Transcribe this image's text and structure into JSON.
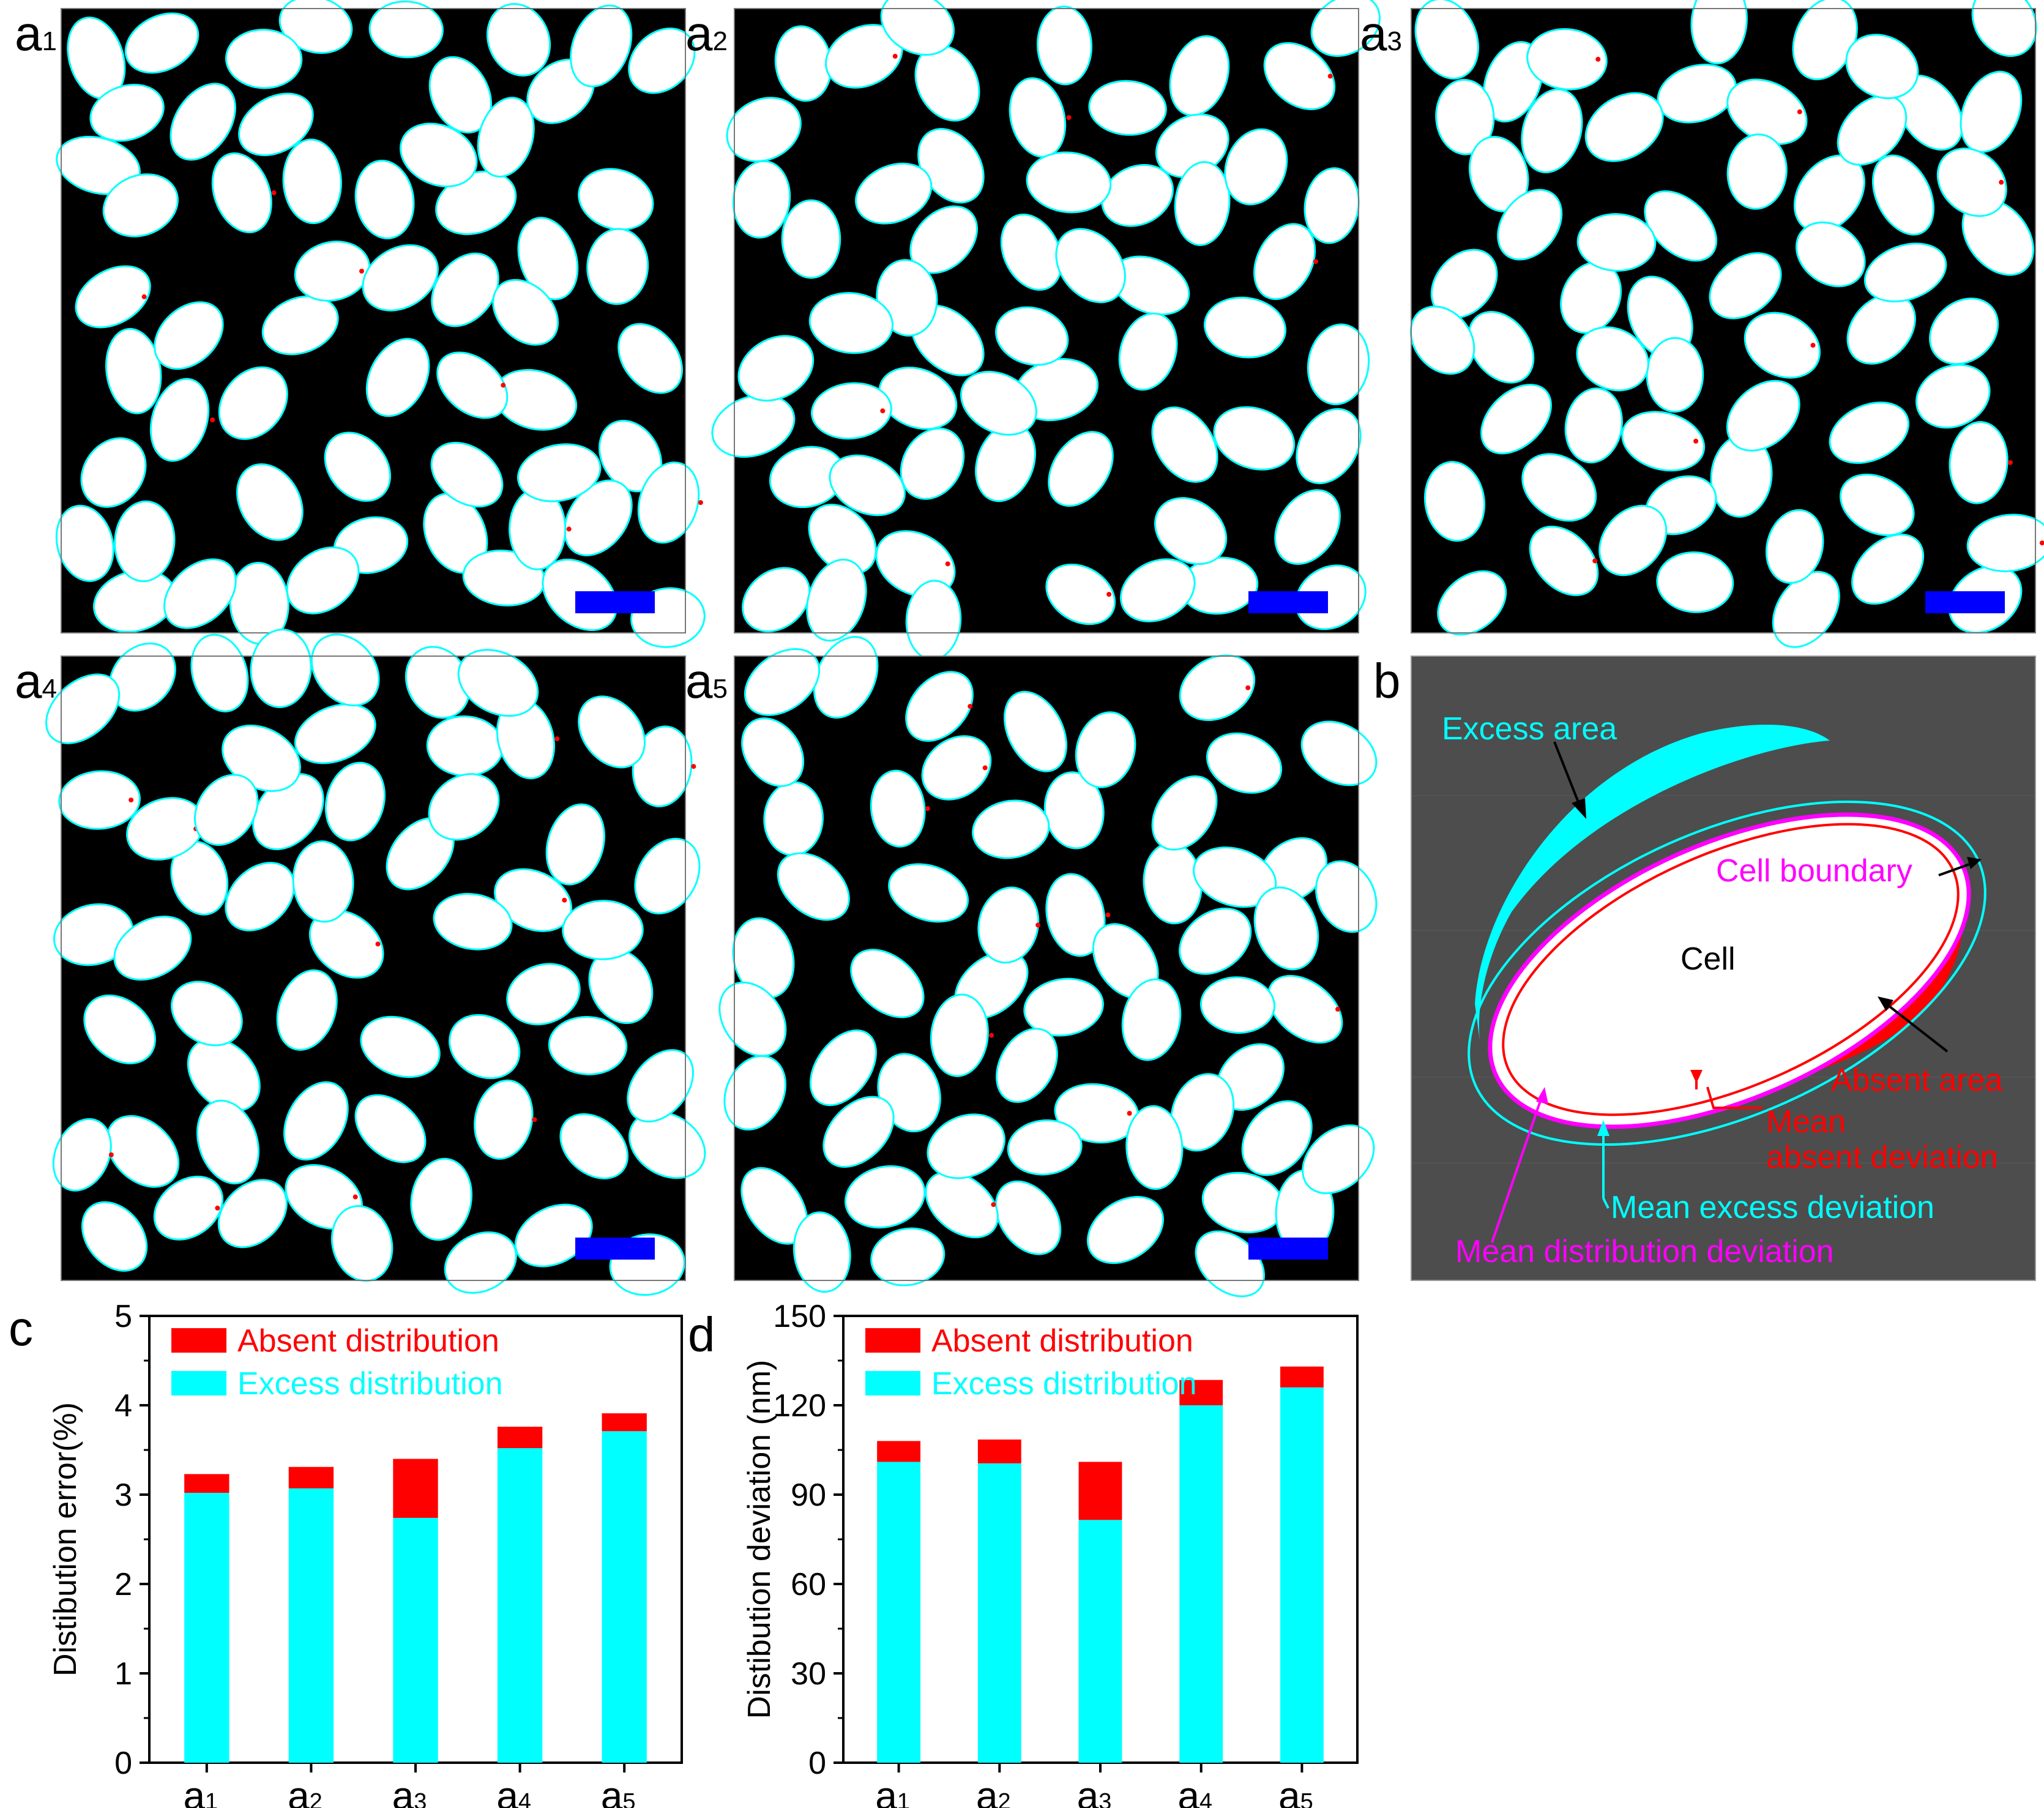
{
  "colors": {
    "excess": "#00ffff",
    "absent": "#ff0000",
    "boundary": "#ff00ff",
    "scale_bar": "#0000ff",
    "panel_b_bg": "#4d4d4d"
  },
  "panels": [
    {
      "label": "a",
      "sub": "1",
      "seed": 11
    },
    {
      "label": "a",
      "sub": "2",
      "seed": 23
    },
    {
      "label": "a",
      "sub": "3",
      "seed": 37
    },
    {
      "label": "a",
      "sub": "4",
      "seed": 41
    },
    {
      "label": "a",
      "sub": "5",
      "seed": 59
    }
  ],
  "panel_b": {
    "label": "b",
    "excess_area": "Excess area",
    "cell_boundary": "Cell boundary",
    "cell": "Cell",
    "absent_area": "Absent  area",
    "mean_absent_line1": "Mean",
    "mean_absent_line2": "absent deviation",
    "mean_excess": "Mean excess deviation",
    "mean_distribution": "Mean distribution deviation"
  },
  "chart_data": [
    {
      "panel_label": "c",
      "type": "bar",
      "stacked": true,
      "categories": [
        {
          "base": "a",
          "sub": "1"
        },
        {
          "base": "a",
          "sub": "2"
        },
        {
          "base": "a",
          "sub": "3"
        },
        {
          "base": "a",
          "sub": "4"
        },
        {
          "base": "a",
          "sub": "5"
        }
      ],
      "series": [
        {
          "name": "Excess distribution",
          "color": "#00ffff",
          "values": [
            3.02,
            3.07,
            2.74,
            3.52,
            3.71
          ]
        },
        {
          "name": "Absent distribution",
          "color": "#ff0000",
          "values": [
            0.21,
            0.24,
            0.66,
            0.24,
            0.2
          ]
        }
      ],
      "legend": [
        "Absent distribution",
        "Excess distribution"
      ],
      "ylabel": "Distibution error(%)",
      "ylim": [
        0,
        5
      ],
      "yticks": [
        0,
        1,
        2,
        3,
        4,
        5
      ],
      "ytick_labels": [
        "0",
        "1",
        "2",
        "3",
        "4",
        "5"
      ]
    },
    {
      "panel_label": "d",
      "type": "bar",
      "stacked": true,
      "categories": [
        {
          "base": "a",
          "sub": "1"
        },
        {
          "base": "a",
          "sub": "2"
        },
        {
          "base": "a",
          "sub": "3"
        },
        {
          "base": "a",
          "sub": "4"
        },
        {
          "base": "a",
          "sub": "5"
        }
      ],
      "series": [
        {
          "name": "Excess distribution",
          "color": "#00ffff",
          "values": [
            101,
            100.5,
            81.5,
            120,
            126
          ]
        },
        {
          "name": "Absent distribution",
          "color": "#ff0000",
          "values": [
            7,
            8,
            19.5,
            8.5,
            7
          ]
        }
      ],
      "legend": [
        "Absent distribution",
        "Excess distribution"
      ],
      "ylabel": "Distibution deviation (nm)",
      "ylim": [
        0,
        150
      ],
      "yticks": [
        0,
        30,
        60,
        90,
        120,
        150
      ],
      "ytick_labels": [
        "0",
        "30",
        "60",
        "90",
        "120",
        "150"
      ]
    }
  ]
}
